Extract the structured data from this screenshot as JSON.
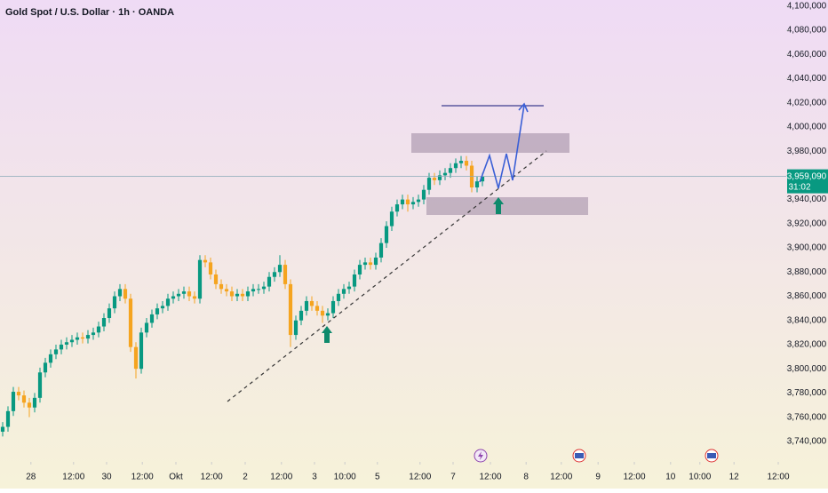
{
  "chart_data": {
    "type": "candlestick",
    "title": "Gold Spot / U.S. Dollar · 1h · OANDA",
    "open": [
      3748000,
      3752000,
      3765000,
      3781000,
      3778000,
      3772000,
      3768000,
      3776000,
      3797000,
      3805000,
      3812000,
      3816000,
      3820000,
      3822000,
      3824000,
      3826000,
      3825000,
      3828000,
      3830000,
      3835000,
      3842000,
      3850000,
      3860000,
      3866000,
      3858000,
      3818000,
      3800000,
      3830000,
      3838000,
      3845000,
      3850000,
      3852000,
      3858000,
      3860000,
      3862000,
      3864000,
      3860000,
      3858000,
      3890000,
      3888000,
      3878000,
      3870000,
      3866000,
      3864000,
      3860000,
      3862000,
      3860000,
      3864000,
      3866000,
      3866000,
      3868000,
      3876000,
      3880000,
      3886000,
      3870000,
      3828000,
      3840000,
      3848000,
      3856000,
      3852000,
      3848000,
      3844000,
      3846000,
      3856000,
      3862000,
      3866000,
      3868000,
      3878000,
      3886000,
      3888000,
      3886000,
      3892000,
      3904000,
      3918000,
      3930000,
      3936000,
      3940000,
      3936000,
      3938000,
      3940000,
      3948000,
      3958000,
      3956000,
      3960000,
      3962000,
      3966000,
      3970000,
      3972000,
      3968000,
      3950000,
      3955000
    ],
    "high": [
      3756000,
      3769000,
      3785000,
      3785000,
      3782000,
      3776000,
      3780000,
      3801000,
      3809000,
      3816000,
      3820000,
      3824000,
      3826000,
      3828000,
      3830000,
      3830000,
      3832000,
      3834000,
      3839000,
      3846000,
      3854000,
      3864000,
      3870000,
      3870000,
      3862000,
      3822000,
      3834000,
      3842000,
      3849000,
      3854000,
      3856000,
      3862000,
      3864000,
      3866000,
      3868000,
      3868000,
      3864000,
      3894000,
      3894000,
      3892000,
      3882000,
      3874000,
      3870000,
      3868000,
      3866000,
      3866000,
      3868000,
      3870000,
      3870000,
      3872000,
      3880000,
      3884000,
      3894000,
      3890000,
      3874000,
      3844000,
      3852000,
      3860000,
      3860000,
      3856000,
      3852000,
      3850000,
      3860000,
      3866000,
      3870000,
      3872000,
      3882000,
      3890000,
      3892000,
      3892000,
      3896000,
      3908000,
      3922000,
      3934000,
      3940000,
      3944000,
      3944000,
      3942000,
      3944000,
      3952000,
      3962000,
      3962000,
      3964000,
      3966000,
      3970000,
      3974000,
      3976000,
      3976000,
      3972000,
      3959000,
      3962000
    ],
    "low": [
      3744000,
      3748000,
      3761000,
      3774000,
      3768000,
      3760000,
      3764000,
      3772000,
      3793000,
      3801000,
      3808000,
      3812000,
      3816000,
      3818000,
      3820000,
      3821000,
      3821000,
      3824000,
      3826000,
      3831000,
      3838000,
      3846000,
      3856000,
      3854000,
      3814000,
      3792000,
      3796000,
      3826000,
      3834000,
      3841000,
      3846000,
      3848000,
      3854000,
      3856000,
      3858000,
      3856000,
      3854000,
      3854000,
      3884000,
      3874000,
      3866000,
      3862000,
      3860000,
      3856000,
      3856000,
      3856000,
      3856000,
      3860000,
      3862000,
      3862000,
      3864000,
      3872000,
      3876000,
      3866000,
      3818000,
      3824000,
      3836000,
      3844000,
      3848000,
      3844000,
      3838000,
      3840000,
      3842000,
      3852000,
      3858000,
      3862000,
      3864000,
      3874000,
      3882000,
      3882000,
      3882000,
      3888000,
      3900000,
      3914000,
      3926000,
      3932000,
      3930000,
      3932000,
      3934000,
      3936000,
      3944000,
      3952000,
      3952000,
      3956000,
      3958000,
      3962000,
      3966000,
      3964000,
      3946000,
      3946000,
      3951000
    ],
    "close": [
      3752000,
      3765000,
      3781000,
      3778000,
      3772000,
      3768000,
      3776000,
      3797000,
      3805000,
      3812000,
      3816000,
      3820000,
      3822000,
      3824000,
      3826000,
      3825000,
      3828000,
      3830000,
      3835000,
      3842000,
      3850000,
      3860000,
      3866000,
      3858000,
      3818000,
      3800000,
      3830000,
      3838000,
      3845000,
      3850000,
      3852000,
      3858000,
      3860000,
      3862000,
      3864000,
      3860000,
      3858000,
      3890000,
      3888000,
      3878000,
      3870000,
      3866000,
      3864000,
      3860000,
      3862000,
      3860000,
      3864000,
      3866000,
      3866000,
      3868000,
      3876000,
      3880000,
      3886000,
      3870000,
      3828000,
      3840000,
      3848000,
      3856000,
      3852000,
      3848000,
      3844000,
      3846000,
      3856000,
      3862000,
      3866000,
      3868000,
      3878000,
      3886000,
      3888000,
      3886000,
      3892000,
      3904000,
      3918000,
      3930000,
      3936000,
      3940000,
      3936000,
      3938000,
      3940000,
      3948000,
      3958000,
      3956000,
      3960000,
      3962000,
      3966000,
      3970000,
      3972000,
      3968000,
      3950000,
      3955000,
      3959090
    ],
    "up_color": "#089981",
    "down_color": "#f5a41f",
    "last_price": {
      "value": 3959090,
      "label": "3,959,090"
    },
    "countdown": "31:02",
    "xlim": [
      0,
      147.5
    ],
    "xticks": [
      {
        "value": 5.8,
        "label": "28"
      },
      {
        "value": 13.8,
        "label": "12:00"
      },
      {
        "value": 20,
        "label": "30"
      },
      {
        "value": 26.7,
        "label": "12:00"
      },
      {
        "value": 33,
        "label": "Okt"
      },
      {
        "value": 39.7,
        "label": "12:00"
      },
      {
        "value": 46,
        "label": "2"
      },
      {
        "value": 52.8,
        "label": "12:00"
      },
      {
        "value": 59,
        "label": "3"
      },
      {
        "value": 64.7,
        "label": "10:00"
      },
      {
        "value": 70.8,
        "label": "5"
      },
      {
        "value": 78.8,
        "label": "12:00"
      },
      {
        "value": 85,
        "label": "7"
      },
      {
        "value": 92,
        "label": "12:00"
      },
      {
        "value": 98.7,
        "label": "8"
      },
      {
        "value": 105.3,
        "label": "12:00"
      },
      {
        "value": 112.2,
        "label": "9"
      },
      {
        "value": 119,
        "label": "12:00"
      },
      {
        "value": 125.8,
        "label": "10"
      },
      {
        "value": 131.3,
        "label": "10:00"
      },
      {
        "value": 137.7,
        "label": "12"
      },
      {
        "value": 146,
        "label": "12:00"
      }
    ],
    "ylim": [
      3723000,
      4105000
    ],
    "yticks": [
      {
        "value": 4100000,
        "label": "4,100,000"
      },
      {
        "value": 4080000,
        "label": "4,080,000"
      },
      {
        "value": 4060000,
        "label": "4,060,000"
      },
      {
        "value": 4040000,
        "label": "4,040,000"
      },
      {
        "value": 4020000,
        "label": "4,020,000"
      },
      {
        "value": 4000000,
        "label": "4,000,000"
      },
      {
        "value": 3980000,
        "label": "3,980,000"
      },
      {
        "value": 3960000,
        "label": "3,960,000"
      },
      {
        "value": 3940000,
        "label": "3,940,000"
      },
      {
        "value": 3920000,
        "label": "3,920,000"
      },
      {
        "value": 3900000,
        "label": "3,900,000"
      },
      {
        "value": 3880000,
        "label": "3,880,000"
      },
      {
        "value": 3860000,
        "label": "3,860,000"
      },
      {
        "value": 3840000,
        "label": "3,840,000"
      },
      {
        "value": 3820000,
        "label": "3,820,000"
      },
      {
        "value": 3800000,
        "label": "3,800,000"
      },
      {
        "value": 3780000,
        "label": "3,780,000"
      },
      {
        "value": 3760000,
        "label": "3,760,000"
      },
      {
        "value": 3740000,
        "label": "3,740,000"
      }
    ],
    "grid": false
  }
}
